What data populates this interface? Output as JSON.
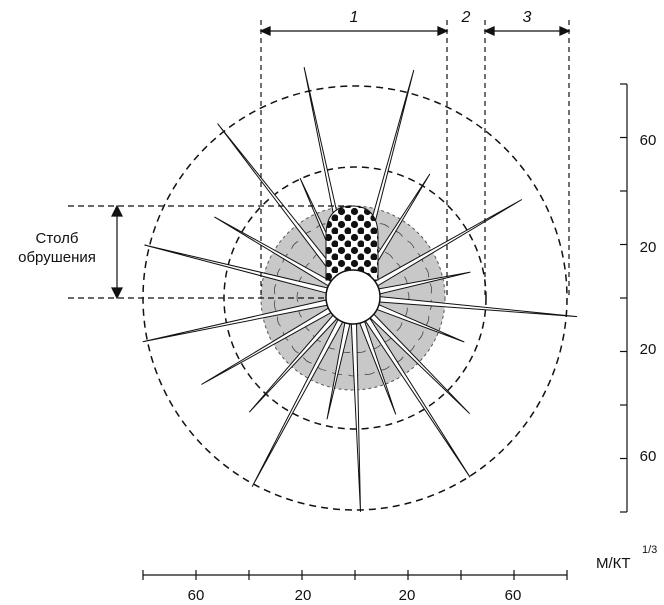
{
  "zones": [
    {
      "label": "1"
    },
    {
      "label": "2"
    },
    {
      "label": "3"
    }
  ],
  "collapse_column": {
    "line1": "Столб",
    "line2": "обрушения"
  },
  "right_scale": {
    "ticks": [
      "60",
      "20",
      "20",
      "60"
    ]
  },
  "bottom_scale": {
    "ticks": [
      "60",
      "20",
      "20",
      "60"
    ]
  },
  "unit_label": {
    "base": "М/КТ",
    "exponent": "1/3"
  }
}
